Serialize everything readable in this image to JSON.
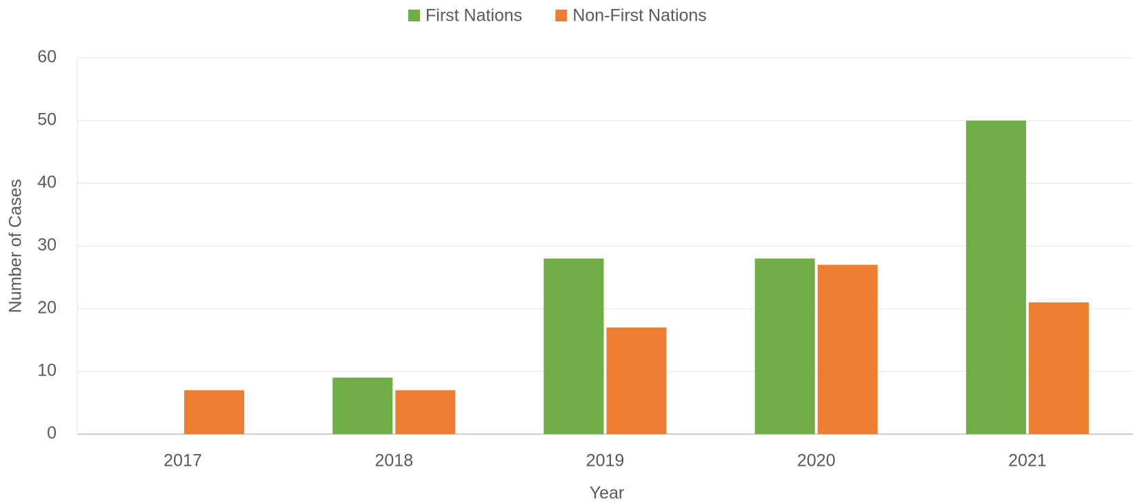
{
  "chart_data": {
    "type": "bar",
    "categories": [
      "2017",
      "2018",
      "2019",
      "2020",
      "2021"
    ],
    "series": [
      {
        "name": "First Nations",
        "color": "#70ad47",
        "values": [
          0,
          9,
          28,
          28,
          50
        ]
      },
      {
        "name": "Non-First Nations",
        "color": "#ed7d31",
        "values": [
          7,
          7,
          17,
          27,
          21
        ]
      }
    ],
    "x_label": "Year",
    "y_label": "Number of Cases",
    "ylim": [
      0,
      60
    ],
    "yticks": [
      0,
      10,
      20,
      30,
      40,
      50,
      60
    ],
    "grid": true,
    "legend": "top"
  }
}
